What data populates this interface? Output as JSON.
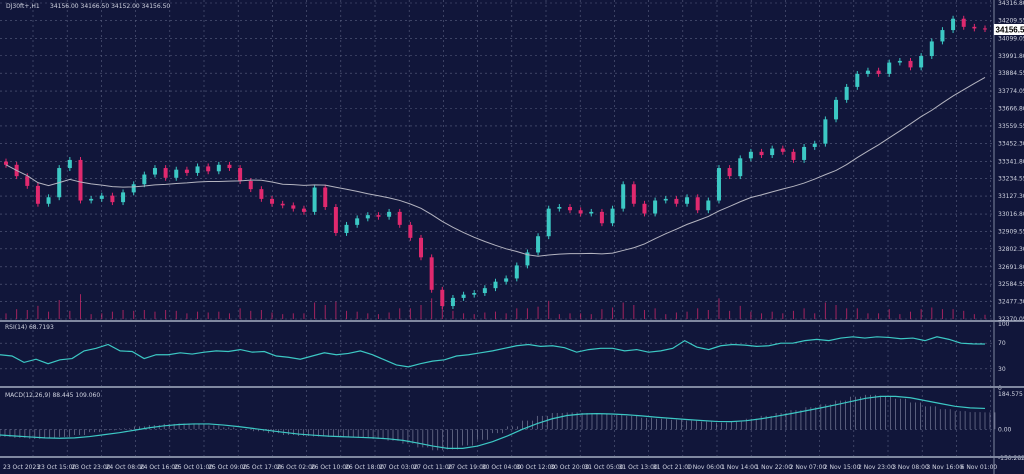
{
  "header": {
    "symbol": "DJ30ft+,H1",
    "ohlc": "34156.00 34166.50 34152.00 34156.50"
  },
  "current_price_label": "34156.50",
  "colors": {
    "background": "#11163a",
    "grid": "#5a6080",
    "up": "#3cc8c4",
    "down": "#e0296e",
    "ma": "#b4b4c0",
    "indicator": "#3cc8c4",
    "histogram": "#8a8ea8"
  },
  "chart_data": [
    {
      "type": "candlestick",
      "title": "DJ30ft+,H1",
      "ylim": [
        32370.05,
        34316.8
      ],
      "grid": true,
      "y_ticks": [
        "34316.80",
        "34209.55",
        "34099.05",
        "33991.80",
        "33884.55",
        "33774.05",
        "33666.80",
        "33559.55",
        "33452.30",
        "33341.80",
        "33234.55",
        "33127.30",
        "33016.80",
        "32909.55",
        "32802.30",
        "32691.80",
        "32584.55",
        "32477.30",
        "32370.05"
      ],
      "x_ticks": [
        "23 Oct 2023",
        "23 Oct 15:00",
        "23 Oct 23:00",
        "24 Oct 08:00",
        "24 Oct 16:00",
        "25 Oct 01:00",
        "25 Oct 09:00",
        "25 Oct 17:00",
        "26 Oct 02:00",
        "26 Oct 10:00",
        "26 Oct 18:00",
        "27 Oct 03:00",
        "27 Oct 11:00",
        "27 Oct 19:00",
        "30 Oct 04:00",
        "30 Oct 12:00",
        "30 Oct 20:00",
        "31 Oct 05:00",
        "31 Oct 13:00",
        "31 Oct 21:00",
        "1 Nov 06:00",
        "1 Nov 14:00",
        "1 Nov 22:00",
        "2 Nov 07:00",
        "2 Nov 15:00",
        "2 Nov 23:00",
        "3 Nov 08:00",
        "3 Nov 16:00",
        "6 Nov 01:00"
      ],
      "closes": [
        33320,
        33250,
        33190,
        33080,
        33120,
        33300,
        33350,
        33100,
        33110,
        33130,
        33090,
        33150,
        33200,
        33260,
        33300,
        33240,
        33290,
        33270,
        33310,
        33280,
        33320,
        33300,
        33220,
        33170,
        33110,
        33080,
        33070,
        33050,
        33030,
        33180,
        33060,
        32900,
        32950,
        32990,
        33010,
        33000,
        33030,
        32950,
        32870,
        32750,
        32550,
        32450,
        32500,
        32520,
        32530,
        32560,
        32600,
        32620,
        32700,
        32780,
        32880,
        33050,
        33060,
        33040,
        33020,
        33030,
        32960,
        33050,
        33200,
        33080,
        33020,
        33100,
        33110,
        33080,
        33120,
        33040,
        33100,
        33300,
        33250,
        33360,
        33400,
        33380,
        33420,
        33400,
        33350,
        33430,
        33450,
        33600,
        33720,
        33800,
        33880,
        33900,
        33880,
        33950,
        33960,
        33920,
        33990,
        34080,
        34150,
        34220,
        34170,
        34160,
        34156.5
      ],
      "moving_average_period": 20
    },
    {
      "type": "line",
      "title": "RSI(14) 68.7193",
      "ylim": [
        0,
        100
      ],
      "y_ticks": [
        "100",
        "70",
        "30",
        "0"
      ],
      "values": [
        52,
        50,
        40,
        45,
        38,
        44,
        46,
        58,
        62,
        68,
        58,
        57,
        46,
        52,
        52,
        55,
        53,
        56,
        58,
        57,
        60,
        56,
        57,
        50,
        48,
        45,
        50,
        55,
        52,
        54,
        58,
        52,
        44,
        36,
        33,
        38,
        42,
        44,
        50,
        52,
        55,
        58,
        62,
        66,
        68,
        65,
        66,
        63,
        56,
        60,
        62,
        62,
        58,
        60,
        56,
        58,
        62,
        74,
        64,
        60,
        66,
        68,
        67,
        65,
        66,
        70,
        70,
        74,
        76,
        74,
        78,
        80,
        78,
        80,
        79,
        77,
        78,
        74,
        80,
        76,
        70,
        69,
        68.7
      ],
      "current_label": "RSI(14) 68.7193"
    },
    {
      "type": "bar+line",
      "title": "MACD(12,26,9) 88.445 109.060",
      "ylim": [
        -150.282,
        184.575
      ],
      "y_ticks": [
        "184.575",
        "0.00",
        "-150.282"
      ],
      "macd": [
        -40,
        -45,
        -50,
        -48,
        -40,
        -30,
        -15,
        -5,
        5,
        15,
        22,
        28,
        30,
        28,
        20,
        10,
        0,
        -10,
        -20,
        -30,
        -35,
        -38,
        -40,
        -42,
        -45,
        -50,
        -60,
        -75,
        -95,
        -110,
        -105,
        -85,
        -55,
        -20,
        15,
        45,
        70,
        85,
        88,
        85,
        80,
        75,
        70,
        60,
        55,
        50,
        45,
        40,
        35,
        40,
        55,
        70,
        85,
        100,
        115,
        130,
        150,
        170,
        180,
        175,
        160,
        140,
        120,
        105,
        95,
        90,
        88.4
      ],
      "signal": [
        -30,
        -35,
        -40,
        -45,
        -47,
        -45,
        -38,
        -28,
        -18,
        -5,
        8,
        18,
        25,
        28,
        28,
        22,
        14,
        4,
        -6,
        -16,
        -25,
        -31,
        -36,
        -39,
        -42,
        -45,
        -50,
        -58,
        -72,
        -88,
        -100,
        -100,
        -88,
        -65,
        -35,
        0,
        30,
        55,
        72,
        80,
        82,
        80,
        76,
        70,
        63,
        57,
        51,
        46,
        41,
        40,
        45,
        55,
        68,
        82,
        97,
        112,
        128,
        145,
        162,
        172,
        172,
        165,
        150,
        135,
        120,
        112,
        109.06
      ],
      "current_label": "MACD(12,26,9) 88.445 109.060"
    }
  ]
}
